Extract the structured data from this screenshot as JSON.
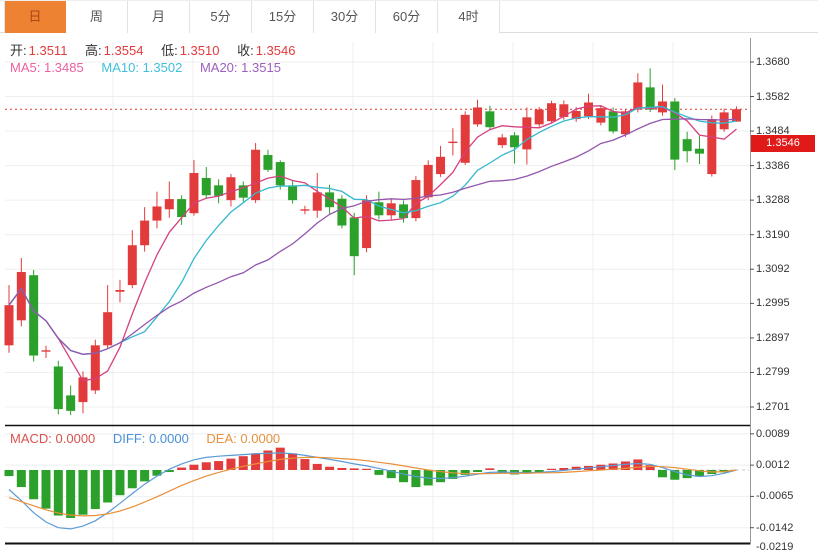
{
  "tabs": [
    {
      "label": "日",
      "active": true
    },
    {
      "label": "周",
      "active": false
    },
    {
      "label": "月",
      "active": false
    },
    {
      "label": "5分",
      "active": false
    },
    {
      "label": "15分",
      "active": false
    },
    {
      "label": "30分",
      "active": false
    },
    {
      "label": "60分",
      "active": false
    },
    {
      "label": "4时",
      "active": false
    }
  ],
  "info": {
    "open_label": "开:",
    "open": "1.3511",
    "high_label": "高:",
    "high": "1.3554",
    "low_label": "低:",
    "low": "1.3510",
    "close_label": "收:",
    "close": "1.3546",
    "ma5_label": "MA5:",
    "ma5": "1.3485",
    "ma10_label": "MA10:",
    "ma10": "1.3502",
    "ma20_label": "MA20:",
    "ma20": "1.3515"
  },
  "macd_info": {
    "macd_label": "MACD:",
    "macd": "0.0000",
    "diff_label": "DIFF:",
    "diff": "0.0000",
    "dea_label": "DEA:",
    "dea": "0.0000"
  },
  "price_axis": {
    "ticks": [
      "1.3680",
      "1.3582",
      "1.3484",
      "1.3386",
      "1.3288",
      "1.3190",
      "1.3092",
      "1.2995",
      "1.2897",
      "1.2799",
      "1.2701"
    ],
    "current": "1.3546"
  },
  "macd_axis": {
    "ticks": [
      "0.0089",
      "0.0012",
      "-0.0065",
      "-0.0142",
      "-0.0219"
    ]
  },
  "colors": {
    "up": "#e23b3b",
    "down": "#2ba12b",
    "ma5": "#d5407f",
    "ma10": "#35b8cf",
    "ma20": "#9356ad",
    "diff": "#5b9bd5",
    "dea": "#e8903a",
    "macd_label": "#d9534f",
    "diff_label": "#4a90d9",
    "dea_label": "#e8923e",
    "value_red": "#e23b3b",
    "ma5_label": "#ec5fa1",
    "ma10_label": "#3fc0da",
    "ma20_label": "#9e5fc0",
    "badge_bg": "#e01919",
    "active_tab": "#ee8233",
    "grid": "#efefef",
    "axis_line": "#999",
    "border_dark": "#111",
    "dotted_price_line": "#e23b3b"
  },
  "chart_data": {
    "type": "candlestick",
    "indicator": "macd",
    "title": "",
    "price_ticks": [
      1.368,
      1.3582,
      1.3484,
      1.3386,
      1.3288,
      1.319,
      1.3092,
      1.2995,
      1.2897,
      1.2799,
      1.2701
    ],
    "current_price": 1.3546,
    "ma_periods": [
      5,
      10,
      20
    ],
    "candles": [
      [
        1.2876,
        1.3047,
        1.2855,
        1.299
      ],
      [
        1.2947,
        1.3124,
        1.293,
        1.3084
      ],
      [
        1.3075,
        1.309,
        1.283,
        1.2847
      ],
      [
        1.2858,
        1.2875,
        1.284,
        1.2862
      ],
      [
        1.2816,
        1.2832,
        1.268,
        1.2695
      ],
      [
        1.2734,
        1.2762,
        1.2678,
        1.269
      ],
      [
        1.2715,
        1.2802,
        1.2683,
        1.2785
      ],
      [
        1.2748,
        1.2892,
        1.2738,
        1.2876
      ],
      [
        1.2876,
        1.3047,
        1.2868,
        1.297
      ],
      [
        1.3028,
        1.3062,
        1.2998,
        1.3033
      ],
      [
        1.3047,
        1.3203,
        1.3038,
        1.316
      ],
      [
        1.316,
        1.3268,
        1.3142,
        1.323
      ],
      [
        1.323,
        1.3312,
        1.3208,
        1.327
      ],
      [
        1.3262,
        1.3341,
        1.3238,
        1.3291
      ],
      [
        1.3291,
        1.3302,
        1.3218,
        1.324
      ],
      [
        1.3251,
        1.3402,
        1.3244,
        1.3365
      ],
      [
        1.3351,
        1.3382,
        1.3294,
        1.3302
      ],
      [
        1.333,
        1.3347,
        1.3279,
        1.33
      ],
      [
        1.3288,
        1.3362,
        1.327,
        1.3353
      ],
      [
        1.333,
        1.3341,
        1.3284,
        1.3295
      ],
      [
        1.3288,
        1.345,
        1.328,
        1.3431
      ],
      [
        1.3416,
        1.3431,
        1.3368,
        1.3374
      ],
      [
        1.3396,
        1.3401,
        1.3318,
        1.333
      ],
      [
        1.333,
        1.3342,
        1.3278,
        1.3288
      ],
      [
        1.3258,
        1.3272,
        1.3248,
        1.3262
      ],
      [
        1.3258,
        1.3365,
        1.3238,
        1.331
      ],
      [
        1.331,
        1.3332,
        1.3248,
        1.3268
      ],
      [
        1.3292,
        1.3302,
        1.3208,
        1.3216
      ],
      [
        1.3239,
        1.3252,
        1.3075,
        1.3129
      ],
      [
        1.3152,
        1.3302,
        1.314,
        1.3288
      ],
      [
        1.3282,
        1.3312,
        1.3233,
        1.3245
      ],
      [
        1.3245,
        1.3292,
        1.3233,
        1.3279
      ],
      [
        1.3276,
        1.3287,
        1.3224,
        1.3237
      ],
      [
        1.3237,
        1.3356,
        1.3228,
        1.3345
      ],
      [
        1.3296,
        1.3401,
        1.3288,
        1.3388
      ],
      [
        1.3362,
        1.3442,
        1.3354,
        1.3411
      ],
      [
        1.345,
        1.3492,
        1.3415,
        1.3454
      ],
      [
        1.3394,
        1.354,
        1.3388,
        1.353
      ],
      [
        1.3503,
        1.3573,
        1.3496,
        1.3551
      ],
      [
        1.354,
        1.3556,
        1.3488,
        1.3495
      ],
      [
        1.3444,
        1.3476,
        1.3436,
        1.3466
      ],
      [
        1.3472,
        1.3481,
        1.3392,
        1.3438
      ],
      [
        1.3432,
        1.3551,
        1.3389,
        1.3523
      ],
      [
        1.3503,
        1.3552,
        1.3496,
        1.3545
      ],
      [
        1.3512,
        1.357,
        1.3505,
        1.3563
      ],
      [
        1.3524,
        1.3571,
        1.3516,
        1.356
      ],
      [
        1.3518,
        1.3552,
        1.351,
        1.3541
      ],
      [
        1.3526,
        1.359,
        1.3518,
        1.3565
      ],
      [
        1.3508,
        1.3558,
        1.35,
        1.3549
      ],
      [
        1.354,
        1.3551,
        1.3477,
        1.3483
      ],
      [
        1.3475,
        1.3546,
        1.3467,
        1.354
      ],
      [
        1.3545,
        1.3648,
        1.3537,
        1.3622
      ],
      [
        1.3608,
        1.3662,
        1.3538,
        1.3545
      ],
      [
        1.3537,
        1.3616,
        1.3528,
        1.3568
      ],
      [
        1.3568,
        1.3578,
        1.3373,
        1.3403
      ],
      [
        1.3461,
        1.3482,
        1.3395,
        1.3427
      ],
      [
        1.3434,
        1.347,
        1.339,
        1.342
      ],
      [
        1.3362,
        1.3528,
        1.3355,
        1.3518
      ],
      [
        1.3489,
        1.3548,
        1.3482,
        1.3537
      ],
      [
        1.3511,
        1.3554,
        1.351,
        1.3546
      ]
    ],
    "macd": {
      "ticks": [
        0.0089,
        0.0012,
        -0.0065,
        -0.0142,
        -0.0219
      ],
      "hist": [
        -0.0015,
        -0.0042,
        -0.0072,
        -0.0095,
        -0.0112,
        -0.0118,
        -0.011,
        -0.0096,
        -0.008,
        -0.0062,
        -0.0045,
        -0.0028,
        -0.0014,
        -0.0005,
        0.0006,
        0.0013,
        0.0019,
        0.0022,
        0.0028,
        0.0034,
        0.0041,
        0.0048,
        0.0055,
        0.0041,
        0.0027,
        0.0015,
        0.0008,
        0.0005,
        0.0004,
        0.0003,
        -0.0012,
        -0.002,
        -0.003,
        -0.0042,
        -0.0038,
        -0.003,
        -0.0022,
        -0.0012,
        -0.0005,
        0.0004,
        -0.0008,
        -0.0011,
        -0.0009,
        -0.0005,
        0.0003,
        0.0005,
        0.0008,
        0.001,
        0.0013,
        0.0016,
        0.0021,
        0.0026,
        0.0012,
        -0.0018,
        -0.0024,
        -0.002,
        -0.0015,
        -0.001,
        -0.0006,
        0.0
      ],
      "diff": [
        -0.0048,
        -0.0075,
        -0.0105,
        -0.0128,
        -0.0142,
        -0.0145,
        -0.0138,
        -0.0125,
        -0.0105,
        -0.0082,
        -0.0058,
        -0.0035,
        -0.0015,
        0.0002,
        0.0015,
        0.0025,
        0.0031,
        0.0034,
        0.0036,
        0.0038,
        0.004,
        0.0041,
        0.0042,
        0.004,
        0.0036,
        0.0031,
        0.0026,
        0.0021,
        0.0015,
        0.001,
        0.0004,
        -0.0003,
        -0.001,
        -0.0016,
        -0.002,
        -0.0021,
        -0.0019,
        -0.0015,
        -0.001,
        -0.0006,
        -0.0005,
        -0.0006,
        -0.0007,
        -0.0006,
        -0.0004,
        -0.0001,
        0.0002,
        0.0005,
        0.0008,
        0.0011,
        0.0014,
        0.0016,
        0.0014,
        0.0006,
        -0.0004,
        -0.0012,
        -0.0016,
        -0.0014,
        -0.0008,
        0.0
      ],
      "dea": [
        -0.0068,
        -0.0078,
        -0.0088,
        -0.0098,
        -0.0106,
        -0.0111,
        -0.0113,
        -0.0112,
        -0.0108,
        -0.0101,
        -0.0091,
        -0.0079,
        -0.0066,
        -0.0052,
        -0.0038,
        -0.0026,
        -0.0015,
        -0.0006,
        0.0002,
        0.0009,
        0.0015,
        0.0021,
        0.0026,
        0.0029,
        0.0031,
        0.0031,
        0.003,
        0.0028,
        0.0026,
        0.0023,
        0.0019,
        0.0015,
        0.001,
        0.0005,
        0.0,
        -0.0004,
        -0.0007,
        -0.0009,
        -0.0009,
        -0.0009,
        -0.0008,
        -0.0008,
        -0.0008,
        -0.0007,
        -0.0007,
        -0.0006,
        -0.0004,
        -0.0002,
        0.0,
        0.0002,
        0.0004,
        0.0007,
        0.0009,
        0.0008,
        0.0006,
        0.0002,
        -0.0002,
        -0.0005,
        -0.0004,
        0.0
      ]
    }
  }
}
